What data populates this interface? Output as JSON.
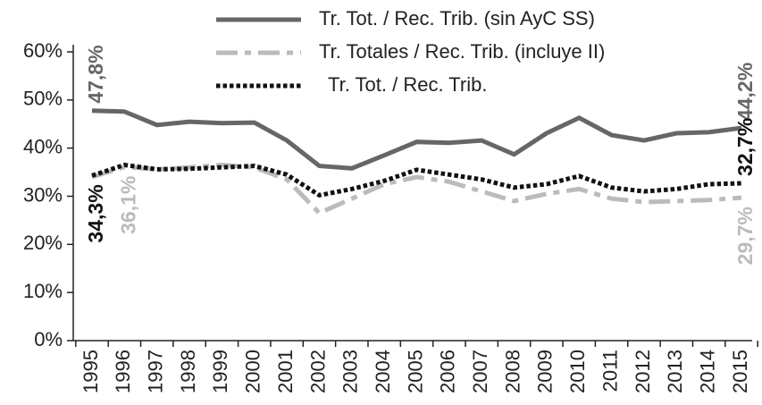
{
  "chart_data": {
    "type": "line",
    "categories": [
      "1995",
      "1996",
      "1997",
      "1998",
      "1999",
      "2000",
      "2001",
      "2002",
      "2003",
      "2004",
      "2005",
      "2006",
      "2007",
      "2008",
      "2009",
      "2010",
      "2011",
      "2012",
      "2013",
      "2014",
      "2015"
    ],
    "series": [
      {
        "name": "Tr. Tot. / Rec. Trib. (sin AyC SS)",
        "color": "#666666",
        "dash": "solid",
        "values": [
          47.8,
          47.6,
          44.8,
          45.5,
          45.2,
          45.3,
          41.6,
          36.3,
          35.8,
          38.5,
          41.3,
          41.1,
          41.6,
          38.7,
          43.1,
          46.3,
          42.7,
          41.6,
          43.1,
          43.3,
          44.2
        ],
        "value_labels": [
          "47,8%",
          null,
          null,
          null,
          null,
          null,
          null,
          null,
          null,
          null,
          null,
          null,
          null,
          null,
          null,
          null,
          null,
          null,
          null,
          null,
          "44,2%"
        ]
      },
      {
        "name": "Tr. Totales / Rec. Trib. (incluye II)",
        "color": "#bbbbbb",
        "dash": "dashdot",
        "values": [
          34.0,
          36.1,
          35.6,
          36.0,
          36.5,
          36.0,
          33.5,
          26.5,
          29.5,
          32.5,
          34.0,
          33.0,
          31.0,
          29.0,
          30.5,
          31.5,
          29.5,
          28.8,
          29.0,
          29.2,
          29.7
        ],
        "value_labels": [
          null,
          "36,1%",
          null,
          null,
          null,
          null,
          null,
          null,
          null,
          null,
          null,
          null,
          null,
          null,
          null,
          null,
          null,
          null,
          null,
          null,
          "29,7%"
        ]
      },
      {
        "name": "Tr. Tot. / Rec. Trib.",
        "color": "#111111",
        "dash": "dotted",
        "values": [
          34.3,
          36.5,
          35.6,
          35.7,
          36.0,
          36.3,
          34.5,
          30.2,
          31.5,
          33.2,
          35.5,
          34.5,
          33.5,
          31.8,
          32.5,
          34.2,
          31.8,
          31.0,
          31.5,
          32.5,
          32.7
        ],
        "value_labels": [
          "34,3%",
          null,
          null,
          null,
          null,
          null,
          null,
          null,
          null,
          null,
          null,
          null,
          null,
          null,
          null,
          null,
          null,
          null,
          null,
          null,
          "32,7%"
        ]
      }
    ],
    "ylim": [
      0,
      60
    ],
    "yticks": [
      {
        "value": 0,
        "label": "0%"
      },
      {
        "value": 10,
        "label": "10%"
      },
      {
        "value": 20,
        "label": "20%"
      },
      {
        "value": 30,
        "label": "30%"
      },
      {
        "value": 40,
        "label": "40%"
      },
      {
        "value": 50,
        "label": "50%"
      },
      {
        "value": 60,
        "label": "60%"
      }
    ],
    "grid": false,
    "legend": "top"
  }
}
